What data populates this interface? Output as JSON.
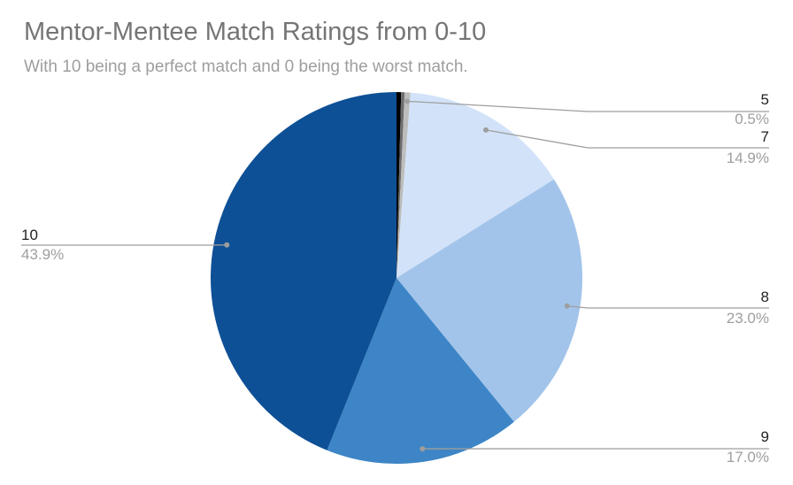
{
  "chart_data": {
    "type": "pie",
    "title": "Mentor-Mentee Match Ratings from 0-10",
    "subtitle": "With 10 being a perfect match and 0 being the worst match.",
    "slices": [
      {
        "label": "5",
        "percent_label": "0.5%",
        "value": 0.5,
        "color": "#bdbdbd"
      },
      {
        "label": "7",
        "percent_label": "14.9%",
        "value": 14.9,
        "color": "#d2e2f8"
      },
      {
        "label": "8",
        "percent_label": "23.0%",
        "value": 23.0,
        "color": "#a2c4ea"
      },
      {
        "label": "9",
        "percent_label": "17.0%",
        "value": 17.0,
        "color": "#3d85c6"
      },
      {
        "label": "10",
        "percent_label": "43.9%",
        "value": 43.9,
        "color": "#0e5096"
      }
    ],
    "unlabeled_slices": [
      {
        "value": 0.4,
        "color": "#000000"
      },
      {
        "value": 0.3,
        "color": "#6d6d6d"
      }
    ],
    "legend": "labels-with-leader-lines"
  }
}
